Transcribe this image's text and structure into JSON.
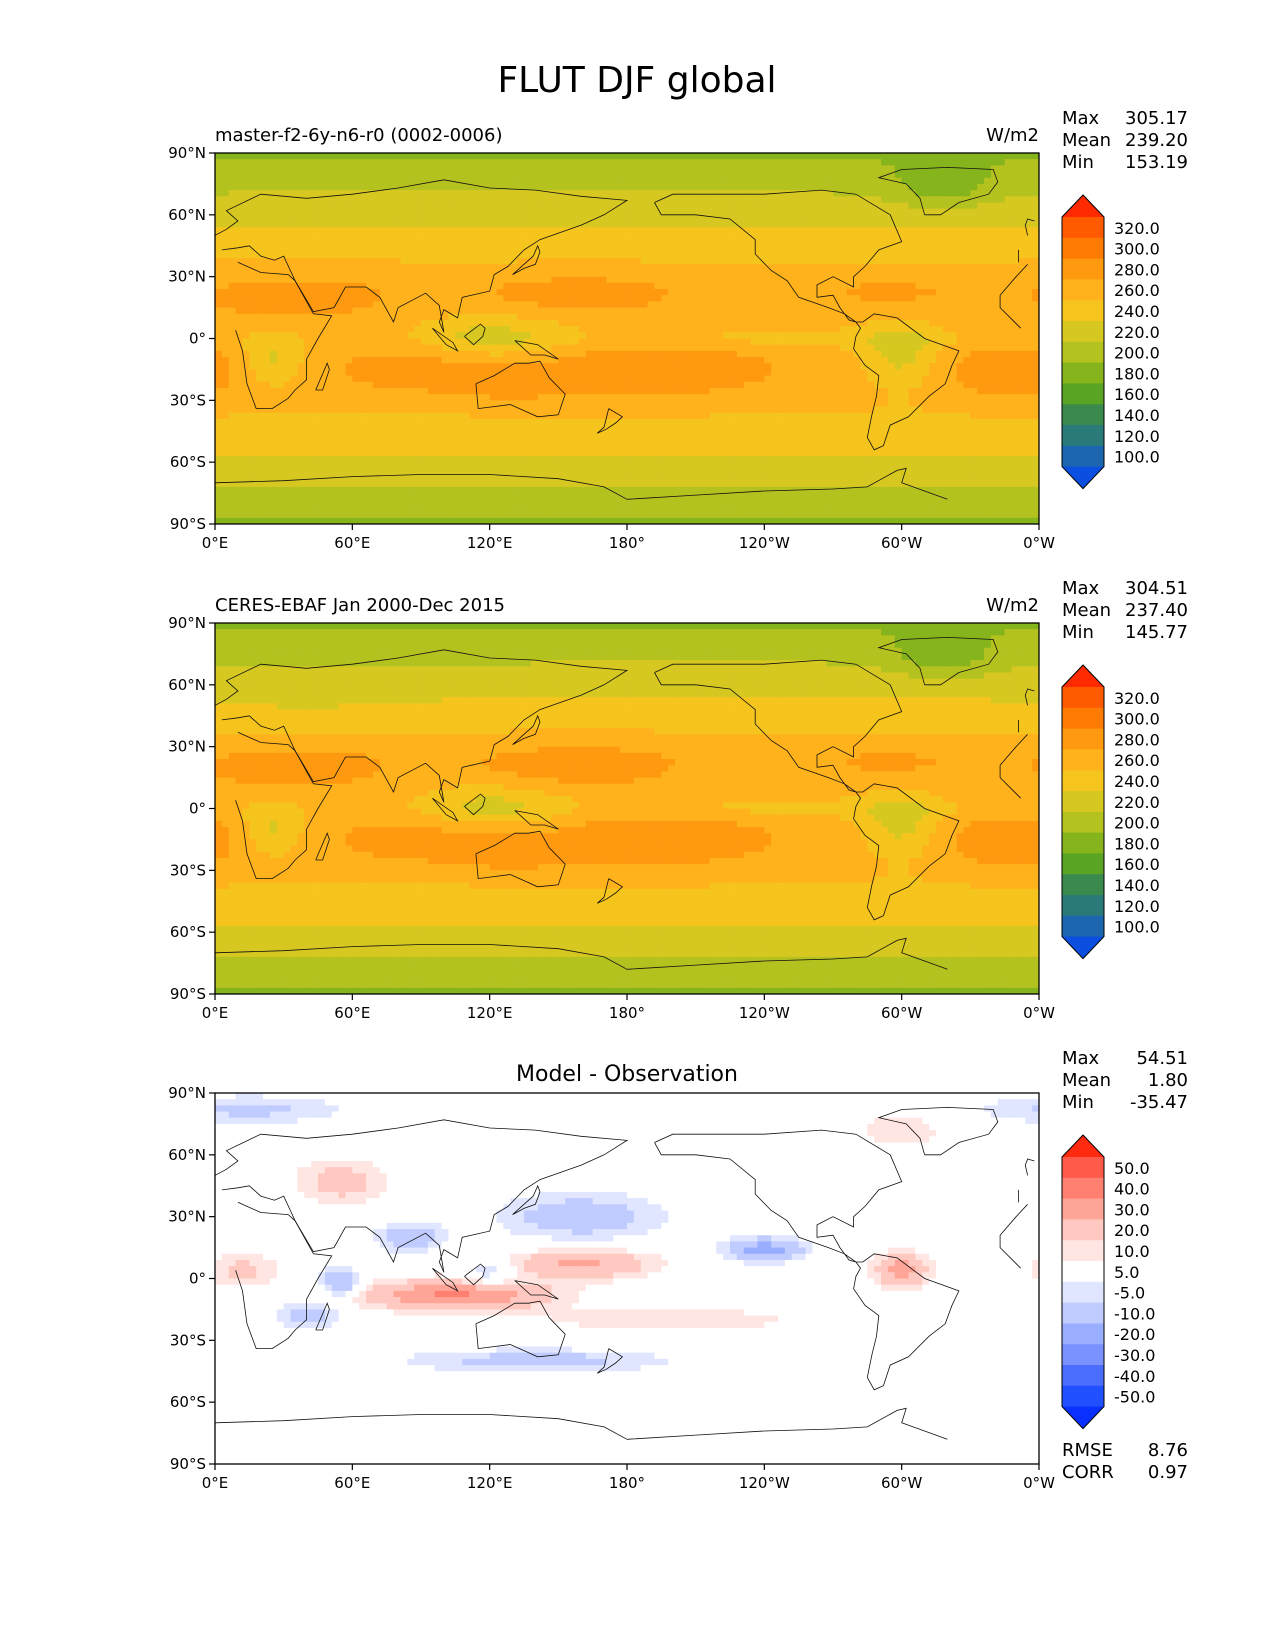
{
  "figure": {
    "title": "FLUT DJF global"
  },
  "panels": [
    {
      "id": "model",
      "left_label": "master-f2-6y-n6-r0 (0002-0006)",
      "center_label": "",
      "units": "W/m2",
      "stats": [
        {
          "label": "Max",
          "value": "305.17"
        },
        {
          "label": "Mean",
          "value": "239.20"
        },
        {
          "label": "Min",
          "value": "153.19"
        }
      ],
      "colorbar": {
        "ticks": [
          "320.0",
          "300.0",
          "280.0",
          "260.0",
          "240.0",
          "220.0",
          "200.0",
          "180.0",
          "160.0",
          "140.0",
          "120.0",
          "100.0"
        ],
        "colors": [
          "#ff2a00",
          "#ff5a00",
          "#ff7a00",
          "#ff9a10",
          "#ffb21c",
          "#f5c41d",
          "#d6c820",
          "#b4c21f",
          "#86b41c",
          "#5aa423",
          "#3a8a4e",
          "#2a7a7a",
          "#1c66b0",
          "#0a4fe0"
        ]
      },
      "field": "model"
    },
    {
      "id": "obs",
      "left_label": "CERES-EBAF Jan 2000-Dec 2015",
      "center_label": "",
      "units": "W/m2",
      "stats": [
        {
          "label": "Max",
          "value": "304.51"
        },
        {
          "label": "Mean",
          "value": "237.40"
        },
        {
          "label": "Min",
          "value": "145.77"
        }
      ],
      "colorbar": {
        "ticks": [
          "320.0",
          "300.0",
          "280.0",
          "260.0",
          "240.0",
          "220.0",
          "200.0",
          "180.0",
          "160.0",
          "140.0",
          "120.0",
          "100.0"
        ],
        "colors": [
          "#ff2a00",
          "#ff5a00",
          "#ff7a00",
          "#ff9a10",
          "#ffb21c",
          "#f5c41d",
          "#d6c820",
          "#b4c21f",
          "#86b41c",
          "#5aa423",
          "#3a8a4e",
          "#2a7a7a",
          "#1c66b0",
          "#0a4fe0"
        ]
      },
      "field": "obs"
    },
    {
      "id": "diff",
      "left_label": "",
      "center_label": "Model - Observation",
      "units": "",
      "stats": [
        {
          "label": "Max",
          "value": "54.51"
        },
        {
          "label": "Mean",
          "value": "1.80"
        },
        {
          "label": "Min",
          "value": "-35.47"
        }
      ],
      "extra_stats": [
        {
          "label": "RMSE",
          "value": "8.76"
        },
        {
          "label": "CORR",
          "value": "0.97"
        }
      ],
      "colorbar": {
        "ticks": [
          "50.0",
          "40.0",
          "30.0",
          "20.0",
          "10.0",
          "5.0",
          "-5.0",
          "-10.0",
          "-20.0",
          "-30.0",
          "-40.0",
          "-50.0"
        ],
        "colors": [
          "#ff2a10",
          "#ff5a4a",
          "#ff8070",
          "#ffa598",
          "#ffc8c0",
          "#ffe6e2",
          "#ffffff",
          "#e0e6ff",
          "#c0ccff",
          "#9aaeff",
          "#7a92ff",
          "#4a6cff",
          "#2050ff",
          "#0a30ff"
        ]
      },
      "field": "diff"
    }
  ],
  "axes": {
    "x_ticks": [
      "0°E",
      "60°E",
      "120°E",
      "180°",
      "120°W",
      "60°W",
      "0°W"
    ],
    "y_ticks": [
      "90°N",
      "60°N",
      "30°N",
      "0°",
      "30°S",
      "60°S",
      "90°S"
    ]
  }
}
